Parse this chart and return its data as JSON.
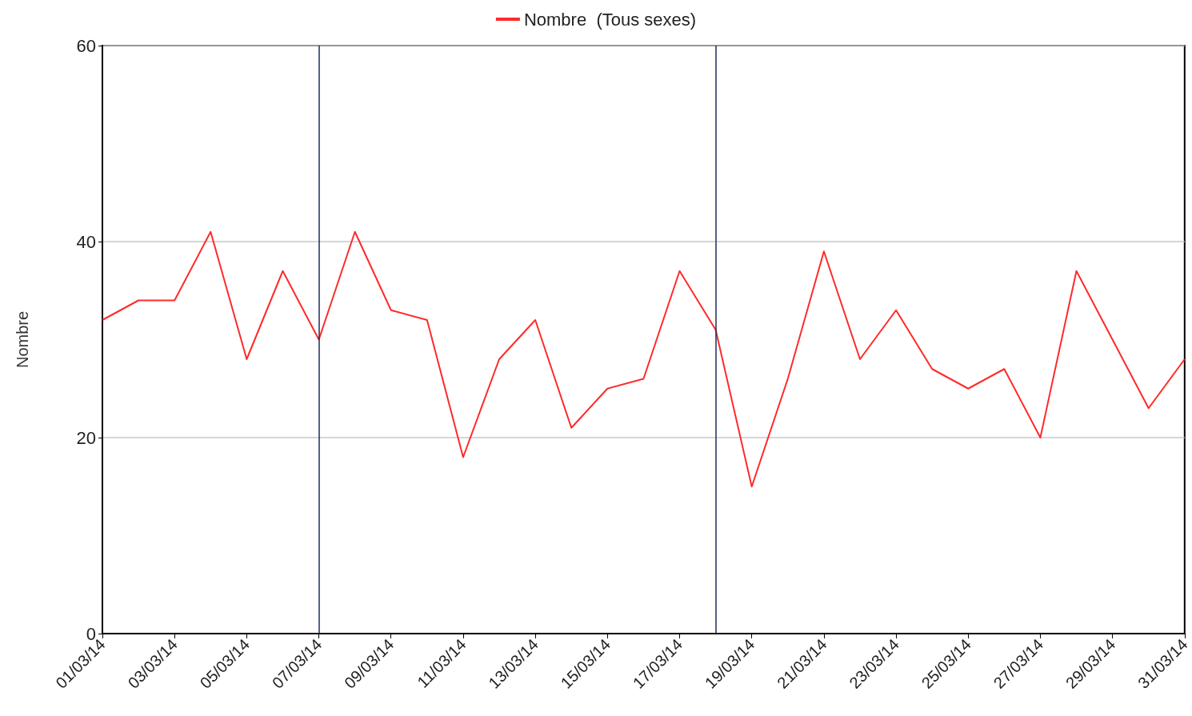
{
  "chart_data": {
    "type": "line",
    "ylabel": "Nombre",
    "x": [
      "--03-01",
      "--03-02",
      "--03-03",
      "--03-04",
      "--03-05",
      "--03-06",
      "--03-07",
      "--03-08",
      "--03-09",
      "--03-10",
      "--03-11",
      "--03-12",
      "--03-13",
      "--03-14",
      "--03-15",
      "--03-16",
      "--03-17",
      "--03-18",
      "--03-19",
      "--03-20",
      "--03-21",
      "--03-22",
      "--03-23",
      "--03-24",
      "--03-25",
      "--03-26",
      "--03-27",
      "--03-28",
      "--03-29",
      "--03-30",
      "--03-31"
    ],
    "series": [
      {
        "name": "Nombre  (Tous sexes)",
        "color": "#ff2a2a",
        "values": [
          32,
          34,
          34,
          41,
          28,
          37,
          30,
          41,
          33,
          32,
          18,
          28,
          32,
          21,
          25,
          26,
          37,
          31,
          15,
          26,
          39,
          28,
          33,
          27,
          25,
          27,
          20,
          37,
          30,
          23,
          28
        ]
      }
    ],
    "xlim": [
      "--03-01",
      "--03-31"
    ],
    "xticks": [
      {
        "value": "--03-01",
        "label": "01/03/14"
      },
      {
        "value": "--03-03",
        "label": "03/03/14"
      },
      {
        "value": "--03-05",
        "label": "05/03/14"
      },
      {
        "value": "--03-07",
        "label": "07/03/14"
      },
      {
        "value": "--03-09",
        "label": "09/03/14"
      },
      {
        "value": "--03-11",
        "label": "11/03/14"
      },
      {
        "value": "--03-13",
        "label": "13/03/14"
      },
      {
        "value": "--03-15",
        "label": "15/03/14"
      },
      {
        "value": "--03-17",
        "label": "17/03/14"
      },
      {
        "value": "--03-19",
        "label": "19/03/14"
      },
      {
        "value": "--03-21",
        "label": "21/03/14"
      },
      {
        "value": "--03-23",
        "label": "23/03/14"
      },
      {
        "value": "--03-25",
        "label": "25/03/14"
      },
      {
        "value": "--03-27",
        "label": "27/03/14"
      },
      {
        "value": "--03-29",
        "label": "29/03/14"
      },
      {
        "value": "--03-31",
        "label": "31/03/14"
      }
    ],
    "ylim": [
      0,
      60
    ],
    "yticks": [
      0,
      20,
      40,
      60
    ],
    "ref_lines": [
      {
        "axis": "x",
        "value": "--03-07",
        "color": "#1c2b5e"
      },
      {
        "axis": "x",
        "value": "--03-18",
        "color": "#1c2b5e"
      }
    ],
    "grid": "y",
    "legend": "top",
    "marker": "none",
    "line_style": "solid"
  }
}
